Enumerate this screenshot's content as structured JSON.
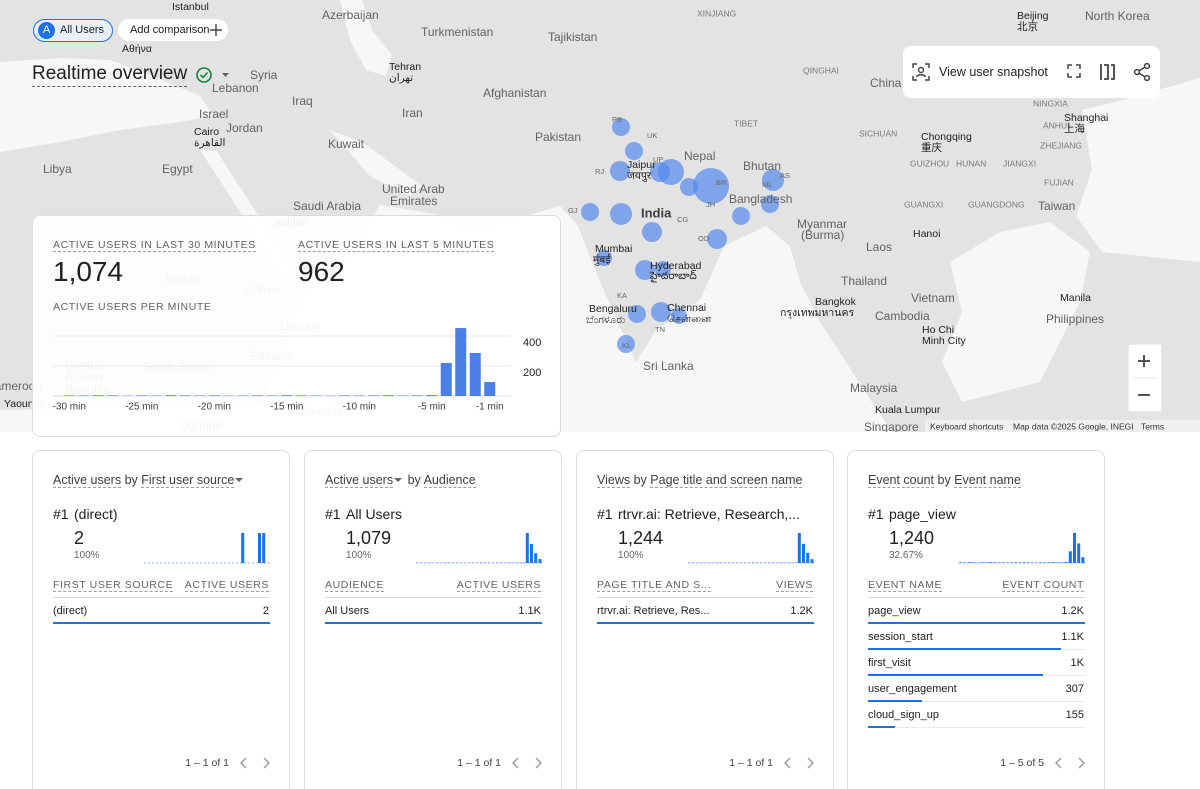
{
  "header": {
    "segment_letter": "A",
    "segment": "All Users",
    "add_comparison": "Add comparison",
    "title": "Realtime overview"
  },
  "toolbar": {
    "snapshot": "View user snapshot"
  },
  "map": {
    "labels": [
      "Istanbul",
      "Azerbaijan",
      "Turkmenistan",
      "Tajikistan",
      "XINJIANG",
      "Beijing",
      "北京",
      "North Korea",
      "Αθήνα",
      "Syria",
      "Tehran",
      "تهران",
      "QINGHAI",
      "China",
      "Lebanon",
      "Iraq",
      "Afghanistan",
      "Israel",
      "Jordan",
      "Iran",
      "Pakistan",
      "TIBET",
      "SICHUAN",
      "Chongqing",
      "重庆",
      "NINGXIA",
      "ANHUI",
      "Shanghai",
      "上海",
      "Cairo",
      "القاهرة",
      "Kuwait",
      "Nepal",
      "Libya",
      "Egypt",
      "Bhutan",
      "GUIZHOU",
      "HUNAN",
      "JIANGXI",
      "ZHEJIANG",
      "FUJIAN",
      "United Arab",
      "Emirates",
      "Saudi Arabia",
      "Bangladesh",
      "India",
      "GUANGXI",
      "GUANGDONG",
      "Taiwan",
      "Myanmar",
      "(Burma)",
      "Hanoi",
      "Laos",
      "Thailand",
      "Vietnam",
      "Bangkok",
      "กรุงเทพมหานคร",
      "Manila",
      "Cambodia",
      "Philippines",
      "Ho Chi",
      "Minh City",
      "Malaysia",
      "Kuala Lumpur",
      "Singapore",
      "Sri Lanka",
      "Mumbai",
      "मुंबई",
      "Hyderabad",
      "హైదరాబాద్",
      "Bengaluru",
      "ಬೆಂಗಳೂರು",
      "Chennai",
      "சென்னை",
      "Jaipur",
      "जयपुर",
      "PB",
      "UK",
      "UP",
      "RJ",
      "BR",
      "AS",
      "ML",
      "GJ",
      "JH",
      "CG",
      "OD",
      "KA",
      "TN",
      "KL",
      "Jeddah",
      "Sudan",
      "Eritrea",
      "Djibouti",
      "Ethiopia",
      "South Sudan",
      "Central",
      "African",
      "Republic",
      "Uganda",
      "Somalia",
      "Yaoundé",
      "Cameroon"
    ],
    "attribution": {
      "shortcuts": "Keyboard shortcuts",
      "data": "Map data ©2025 Google, INEGI",
      "terms": "Terms"
    }
  },
  "summary": {
    "metric_30": {
      "label": "ACTIVE USERS IN LAST 30 MINUTES",
      "value": "1,074"
    },
    "metric_5": {
      "label": "ACTIVE USERS IN LAST 5 MINUTES",
      "value": "962"
    },
    "chart": {
      "type": "bar",
      "title": "ACTIVE USERS PER MINUTE",
      "color": "#4a7fe6",
      "categories": [
        "-30 min",
        null,
        null,
        null,
        null,
        "-25 min",
        null,
        null,
        null,
        null,
        "-20 min",
        null,
        null,
        null,
        null,
        "-15 min",
        null,
        null,
        null,
        null,
        "-10 min",
        null,
        null,
        null,
        null,
        "-5 min",
        null,
        null,
        null,
        "-1 min"
      ],
      "values": [
        4,
        3,
        5,
        4,
        2,
        4,
        3,
        5,
        4,
        3,
        4,
        2,
        3,
        4,
        3,
        5,
        4,
        3,
        2,
        4,
        3,
        4,
        5,
        3,
        4,
        6,
        220,
        453,
        287,
        93
      ],
      "ylim": [
        0,
        480
      ],
      "yticks": [
        200,
        400
      ],
      "grid": true
    }
  },
  "cards": [
    {
      "metric": "Active users",
      "by": "by",
      "dimension": "First user source",
      "rank": "#1",
      "top_name": "(direct)",
      "top_value": "2",
      "top_share": "100%",
      "spark": [
        0,
        0,
        0,
        0,
        0,
        0,
        0,
        0,
        0,
        0,
        0,
        0,
        0,
        0,
        0,
        0,
        0,
        0,
        0,
        0,
        0,
        0,
        0,
        1,
        0,
        0,
        0,
        1,
        1,
        0
      ],
      "columns": [
        "FIRST USER SOURCE",
        "ACTIVE USERS"
      ],
      "rows": [
        {
          "name": "(direct)",
          "value": 2
        }
      ],
      "pagination": "1 – 1 of 1"
    },
    {
      "metric": "Active users",
      "by": "by",
      "dimension": "Audience",
      "rank": "#1",
      "top_name": "All Users",
      "top_value": "1,079",
      "top_share": "100%",
      "spark": [
        4,
        3,
        5,
        4,
        2,
        4,
        3,
        5,
        4,
        3,
        4,
        2,
        3,
        4,
        3,
        5,
        4,
        3,
        2,
        4,
        3,
        4,
        5,
        3,
        4,
        6,
        460,
        290,
        150,
        60
      ],
      "columns": [
        "AUDIENCE",
        "ACTIVE USERS"
      ],
      "rows": [
        {
          "name": "All Users",
          "value": 1079,
          "value_label": "1.1K"
        }
      ],
      "pagination": "1 – 1 of 1"
    },
    {
      "metric": "Views",
      "by": "by",
      "dimension": "Page title and screen name",
      "rank": "#1",
      "top_name": "rtrvr.ai: Retrieve, Research,...",
      "top_value": "1,244",
      "top_share": "100%",
      "spark": [
        4,
        3,
        5,
        4,
        3,
        4,
        3,
        5,
        4,
        3,
        4,
        3,
        3,
        4,
        3,
        5,
        4,
        3,
        3,
        4,
        3,
        4,
        5,
        3,
        4,
        6,
        470,
        300,
        160,
        60
      ],
      "columns": [
        "PAGE TITLE AND S...",
        "VIEWS"
      ],
      "rows": [
        {
          "name": "rtrvr.ai: Retrieve, Res...",
          "value": 1244,
          "value_label": "1.2K"
        }
      ],
      "pagination": "1 – 1 of 1"
    },
    {
      "metric": "Event count",
      "by": "by",
      "dimension": "Event name",
      "rank": "#1",
      "top_name": "page_view",
      "top_value": "1,240",
      "top_share": "32.67%",
      "spark": [
        10,
        8,
        12,
        9,
        6,
        10,
        8,
        12,
        10,
        8,
        9,
        6,
        8,
        10,
        8,
        12,
        9,
        8,
        6,
        10,
        8,
        9,
        12,
        8,
        10,
        14,
        180,
        460,
        300,
        90
      ],
      "columns": [
        "EVENT NAME",
        "EVENT COUNT"
      ],
      "rows": [
        {
          "name": "page_view",
          "value": 1240,
          "value_label": "1.2K"
        },
        {
          "name": "session_start",
          "value": 1100,
          "value_label": "1.1K"
        },
        {
          "name": "first_visit",
          "value": 1000,
          "value_label": "1K"
        },
        {
          "name": "user_engagement",
          "value": 307
        },
        {
          "name": "cloud_sign_up",
          "value": 155
        }
      ],
      "pagination": "1 – 5 of 5"
    }
  ]
}
